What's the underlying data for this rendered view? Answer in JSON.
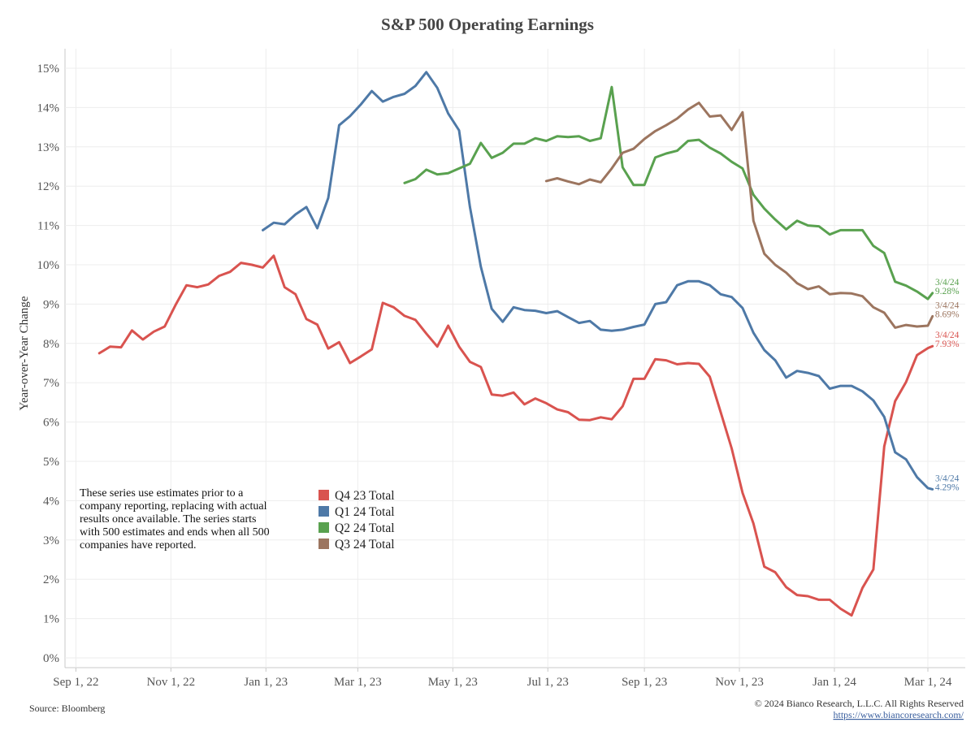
{
  "chart_data": {
    "type": "line",
    "title": "S&P 500 Operating Earnings",
    "ylabel": "Year-over-Year Change",
    "xlabel": "",
    "ylim": [
      0,
      15
    ],
    "yticks": [
      {
        "v": 0,
        "label": "0%"
      },
      {
        "v": 1,
        "label": "1%"
      },
      {
        "v": 2,
        "label": "2%"
      },
      {
        "v": 3,
        "label": "3%"
      },
      {
        "v": 4,
        "label": "4%"
      },
      {
        "v": 5,
        "label": "5%"
      },
      {
        "v": 6,
        "label": "6%"
      },
      {
        "v": 7,
        "label": "7%"
      },
      {
        "v": 8,
        "label": "8%"
      },
      {
        "v": 9,
        "label": "9%"
      },
      {
        "v": 10,
        "label": "10%"
      },
      {
        "v": 11,
        "label": "11%"
      },
      {
        "v": 12,
        "label": "12%"
      },
      {
        "v": 13,
        "label": "13%"
      },
      {
        "v": 14,
        "label": "14%"
      },
      {
        "v": 15,
        "label": "15%"
      }
    ],
    "xlim": [
      "2022-08-25",
      "2024-03-25"
    ],
    "xticks": [
      {
        "date": "2022-09-01",
        "label": "Sep 1, 22"
      },
      {
        "date": "2022-11-01",
        "label": "Nov 1, 22"
      },
      {
        "date": "2023-01-01",
        "label": "Jan 1, 23"
      },
      {
        "date": "2023-03-01",
        "label": "Mar 1, 23"
      },
      {
        "date": "2023-05-01",
        "label": "May 1, 23"
      },
      {
        "date": "2023-07-01",
        "label": "Jul 1, 23"
      },
      {
        "date": "2023-09-01",
        "label": "Sep 1, 23"
      },
      {
        "date": "2023-11-01",
        "label": "Nov 1, 23"
      },
      {
        "date": "2024-01-01",
        "label": "Jan 1, 24"
      },
      {
        "date": "2024-03-01",
        "label": "Mar 1, 24"
      }
    ],
    "grid": true,
    "legend_position": "bottom-left",
    "series": [
      {
        "name": "Q4 23 Total",
        "color": "#d9534f",
        "end_label": {
          "date": "3/4/24",
          "value": "7.93%"
        },
        "x": [
          "2022-09-16",
          "2022-09-23",
          "2022-09-30",
          "2022-10-07",
          "2022-10-14",
          "2022-10-21",
          "2022-10-28",
          "2022-11-04",
          "2022-11-11",
          "2022-11-18",
          "2022-11-25",
          "2022-12-02",
          "2022-12-09",
          "2022-12-16",
          "2022-12-23",
          "2022-12-30",
          "2023-01-06",
          "2023-01-13",
          "2023-01-20",
          "2023-01-27",
          "2023-02-03",
          "2023-02-10",
          "2023-02-17",
          "2023-02-24",
          "2023-03-03",
          "2023-03-10",
          "2023-03-17",
          "2023-03-24",
          "2023-03-31",
          "2023-04-07",
          "2023-04-14",
          "2023-04-21",
          "2023-04-28",
          "2023-05-05",
          "2023-05-12",
          "2023-05-19",
          "2023-05-26",
          "2023-06-02",
          "2023-06-09",
          "2023-06-16",
          "2023-06-23",
          "2023-06-30",
          "2023-07-07",
          "2023-07-14",
          "2023-07-21",
          "2023-07-28",
          "2023-08-04",
          "2023-08-11",
          "2023-08-18",
          "2023-08-25",
          "2023-09-01",
          "2023-09-08",
          "2023-09-15",
          "2023-09-22",
          "2023-09-29",
          "2023-10-06",
          "2023-10-13",
          "2023-10-20",
          "2023-10-27",
          "2023-11-03",
          "2023-11-10",
          "2023-11-17",
          "2023-11-24",
          "2023-12-01",
          "2023-12-08",
          "2023-12-15",
          "2023-12-22",
          "2023-12-29",
          "2024-01-05",
          "2024-01-12",
          "2024-01-19",
          "2024-01-26",
          "2024-02-02",
          "2024-02-09",
          "2024-02-16",
          "2024-02-23",
          "2024-03-01",
          "2024-03-04"
        ],
        "y": [
          7.75,
          7.92,
          7.9,
          8.33,
          8.1,
          8.3,
          8.43,
          8.98,
          9.48,
          9.43,
          9.5,
          9.72,
          9.82,
          10.05,
          10.0,
          9.93,
          10.23,
          9.43,
          9.25,
          8.62,
          8.48,
          7.87,
          8.03,
          7.5,
          7.67,
          7.85,
          9.03,
          8.92,
          8.7,
          8.6,
          8.25,
          7.92,
          8.45,
          7.92,
          7.53,
          7.4,
          6.7,
          6.67,
          6.75,
          6.45,
          6.6,
          6.48,
          6.32,
          6.25,
          6.06,
          6.05,
          6.12,
          6.07,
          6.4,
          7.1,
          7.1,
          7.6,
          7.57,
          7.47,
          7.5,
          7.48,
          7.15,
          6.25,
          5.33,
          4.2,
          3.42,
          2.32,
          2.18,
          1.8,
          1.6,
          1.57,
          1.48,
          1.48,
          1.25,
          1.08,
          1.78,
          2.25,
          5.38,
          6.53,
          7.02,
          7.7,
          7.88,
          7.93
        ]
      },
      {
        "name": "Q1 24 Total",
        "color": "#4e79a7",
        "end_label": {
          "date": "3/4/24",
          "value": "4.29%"
        },
        "x": [
          "2022-12-30",
          "2023-01-06",
          "2023-01-13",
          "2023-01-20",
          "2023-01-27",
          "2023-02-03",
          "2023-02-10",
          "2023-02-17",
          "2023-02-24",
          "2023-03-03",
          "2023-03-10",
          "2023-03-17",
          "2023-03-24",
          "2023-03-31",
          "2023-04-07",
          "2023-04-14",
          "2023-04-21",
          "2023-04-28",
          "2023-05-05",
          "2023-05-12",
          "2023-05-19",
          "2023-05-26",
          "2023-06-02",
          "2023-06-09",
          "2023-06-16",
          "2023-06-23",
          "2023-06-30",
          "2023-07-07",
          "2023-07-14",
          "2023-07-21",
          "2023-07-28",
          "2023-08-04",
          "2023-08-11",
          "2023-08-18",
          "2023-08-25",
          "2023-09-01",
          "2023-09-08",
          "2023-09-15",
          "2023-09-22",
          "2023-09-29",
          "2023-10-06",
          "2023-10-13",
          "2023-10-20",
          "2023-10-27",
          "2023-11-03",
          "2023-11-10",
          "2023-11-17",
          "2023-11-24",
          "2023-12-01",
          "2023-12-08",
          "2023-12-15",
          "2023-12-22",
          "2023-12-29",
          "2024-01-05",
          "2024-01-12",
          "2024-01-19",
          "2024-01-26",
          "2024-02-02",
          "2024-02-09",
          "2024-02-16",
          "2024-02-23",
          "2024-03-01",
          "2024-03-04"
        ],
        "y": [
          10.88,
          11.07,
          11.03,
          11.28,
          11.47,
          10.93,
          11.7,
          13.55,
          13.78,
          14.08,
          14.42,
          14.15,
          14.27,
          14.35,
          14.55,
          14.9,
          14.5,
          13.85,
          13.42,
          11.47,
          9.95,
          8.88,
          8.55,
          8.92,
          8.85,
          8.83,
          8.77,
          8.82,
          8.67,
          8.52,
          8.57,
          8.35,
          8.32,
          8.35,
          8.42,
          8.48,
          9.0,
          9.05,
          9.48,
          9.58,
          9.58,
          9.48,
          9.25,
          9.18,
          8.9,
          8.27,
          7.83,
          7.57,
          7.13,
          7.3,
          7.25,
          7.17,
          6.85,
          6.92,
          6.92,
          6.78,
          6.55,
          6.13,
          5.23,
          5.05,
          4.6,
          4.32,
          4.29
        ]
      },
      {
        "name": "Q2 24 Total",
        "color": "#59a14f",
        "end_label": {
          "date": "3/4/24",
          "value": "9.28%"
        },
        "x": [
          "2023-03-31",
          "2023-04-07",
          "2023-04-14",
          "2023-04-21",
          "2023-04-28",
          "2023-05-05",
          "2023-05-12",
          "2023-05-19",
          "2023-05-26",
          "2023-06-02",
          "2023-06-09",
          "2023-06-16",
          "2023-06-23",
          "2023-06-30",
          "2023-07-07",
          "2023-07-14",
          "2023-07-21",
          "2023-07-28",
          "2023-08-04",
          "2023-08-11",
          "2023-08-18",
          "2023-08-25",
          "2023-09-01",
          "2023-09-08",
          "2023-09-15",
          "2023-09-22",
          "2023-09-29",
          "2023-10-06",
          "2023-10-13",
          "2023-10-20",
          "2023-10-27",
          "2023-11-03",
          "2023-11-10",
          "2023-11-17",
          "2023-11-24",
          "2023-12-01",
          "2023-12-08",
          "2023-12-15",
          "2023-12-22",
          "2023-12-29",
          "2024-01-05",
          "2024-01-12",
          "2024-01-19",
          "2024-01-26",
          "2024-02-02",
          "2024-02-09",
          "2024-02-16",
          "2024-02-23",
          "2024-03-01",
          "2024-03-04"
        ],
        "y": [
          12.08,
          12.18,
          12.42,
          12.3,
          12.33,
          12.45,
          12.57,
          13.1,
          12.72,
          12.85,
          13.08,
          13.08,
          13.22,
          13.15,
          13.27,
          13.25,
          13.27,
          13.15,
          13.22,
          14.52,
          12.48,
          12.03,
          12.03,
          12.73,
          12.83,
          12.9,
          13.15,
          13.18,
          12.98,
          12.83,
          12.62,
          12.45,
          11.78,
          11.43,
          11.15,
          10.9,
          11.12,
          11.0,
          10.98,
          10.77,
          10.88,
          10.88,
          10.88,
          10.48,
          10.3,
          9.57,
          9.47,
          9.32,
          9.13,
          9.28
        ]
      },
      {
        "name": "Q3 24 Total",
        "color": "#9c755f",
        "end_label": {
          "date": "3/4/24",
          "value": "8.69%"
        },
        "x": [
          "2023-06-30",
          "2023-07-07",
          "2023-07-14",
          "2023-07-21",
          "2023-07-28",
          "2023-08-04",
          "2023-08-11",
          "2023-08-18",
          "2023-08-25",
          "2023-09-01",
          "2023-09-08",
          "2023-09-15",
          "2023-09-22",
          "2023-09-29",
          "2023-10-06",
          "2023-10-13",
          "2023-10-20",
          "2023-10-27",
          "2023-11-03",
          "2023-11-10",
          "2023-11-17",
          "2023-11-24",
          "2023-12-01",
          "2023-12-08",
          "2023-12-15",
          "2023-12-22",
          "2023-12-29",
          "2024-01-05",
          "2024-01-12",
          "2024-01-19",
          "2024-01-26",
          "2024-02-02",
          "2024-02-09",
          "2024-02-16",
          "2024-02-23",
          "2024-03-01",
          "2024-03-04"
        ],
        "y": [
          12.13,
          12.2,
          12.12,
          12.05,
          12.17,
          12.1,
          12.45,
          12.85,
          12.95,
          13.2,
          13.4,
          13.55,
          13.72,
          13.95,
          14.12,
          13.77,
          13.8,
          13.43,
          13.88,
          11.12,
          10.28,
          10.0,
          9.8,
          9.53,
          9.38,
          9.45,
          9.25,
          9.28,
          9.27,
          9.2,
          8.92,
          8.78,
          8.4,
          8.47,
          8.43,
          8.45,
          8.69
        ]
      }
    ]
  },
  "note_lines": [
    "These series use estimates prior to a",
    "company reporting, replacing with actual",
    "results once available. The series starts",
    "with 500 estimates and ends when all 500",
    "companies have reported."
  ],
  "footer": {
    "source": "Source: Bloomberg",
    "copyright": "© 2024 Bianco Research, L.L.C. All Rights Reserved",
    "url": "https://www.biancoresearch.com/"
  }
}
